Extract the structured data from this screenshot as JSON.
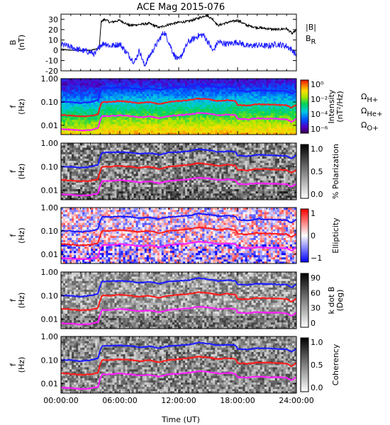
{
  "chart_data": {
    "type": "multi-panel spectrogram",
    "title": "ACE Mag 2015-076",
    "xlabel": "Time (UT)",
    "xticks": [
      "00:00:00",
      "06:00:00",
      "12:00:00",
      "18:00:00",
      "24:00:00"
    ],
    "xlim_hours": [
      0,
      24
    ],
    "panels": [
      {
        "id": "b-field",
        "type": "line",
        "ylabel": "B\n(nT)",
        "ylim": [
          -20,
          35
        ],
        "yticks": [
          "-20",
          "-10",
          "0",
          "10",
          "20",
          "30"
        ],
        "legend": [
          {
            "label": "|B|",
            "color": "#000000"
          },
          {
            "label": "B",
            "sub": "R",
            "color": "#1c1cff"
          }
        ],
        "series": [
          {
            "key": "B_mag",
            "color": "#000000",
            "x": [
              0,
              1,
              2,
              3,
              3.5,
              3.9,
              4.1,
              4.5,
              5,
              6,
              7,
              8,
              9,
              10,
              11,
              12,
              13,
              14,
              14.8,
              15.5,
              16,
              17,
              18,
              19,
              20,
              21,
              22,
              23,
              23.6,
              24
            ],
            "y": [
              1,
              0,
              0,
              0,
              1,
              2,
              28,
              30,
              27,
              29,
              24,
              25,
              26,
              22,
              25,
              27,
              28,
              31,
              34,
              30,
              24,
              27,
              29,
              24,
              22,
              21,
              20,
              21,
              16,
              20
            ]
          },
          {
            "key": "B_R",
            "color": "#1c1cff",
            "x": [
              0,
              1,
              2,
              3,
              3.5,
              4,
              4.5,
              5,
              6,
              6.5,
              7,
              7.5,
              8,
              8.5,
              9,
              10,
              10.5,
              11,
              11.5,
              12,
              13,
              14,
              14.5,
              15,
              15.5,
              16,
              17,
              18,
              19,
              20,
              21,
              22,
              23,
              23.6,
              24
            ],
            "y": [
              6,
              3,
              0,
              -2,
              -4,
              5,
              7,
              4,
              6,
              0,
              -6,
              -12,
              0,
              -15,
              -6,
              10,
              18,
              8,
              -4,
              -10,
              8,
              14,
              15,
              8,
              -1,
              8,
              6,
              8,
              4,
              5,
              4,
              6,
              4,
              0,
              -5
            ]
          }
        ]
      },
      {
        "id": "intensity",
        "type": "heatmap",
        "ylabel": "f\n(Hz)",
        "ylim_log": [
          0.004,
          1.0
        ],
        "yticks": [
          "1.00",
          "0.10",
          "0.01"
        ],
        "colorbar": {
          "label": "Intensity\n(nT²/Hz)",
          "ticks": [
            "10⁰",
            "10⁻²",
            "10⁻⁴",
            "10⁻⁶"
          ],
          "palette": "rainbow"
        },
        "side_legend": [
          {
            "label": "Ω",
            "sub": "H+",
            "color": "#1c1cff"
          },
          {
            "label": "Ω",
            "sub": "He+",
            "color": "#ff1c1c"
          },
          {
            "label": "Ω",
            "sub": "O+",
            "color": "#ff1cff"
          }
        ]
      },
      {
        "id": "polarization",
        "type": "heatmap",
        "ylabel": "f\n(Hz)",
        "ylim_log": [
          0.004,
          1.0
        ],
        "yticks": [
          "1.00",
          "0.10",
          "0.01"
        ],
        "colorbar": {
          "label": "% Polarization",
          "ticks": [
            "1.0",
            "0.5",
            "0.0"
          ],
          "palette": "gray"
        }
      },
      {
        "id": "ellipticity",
        "type": "heatmap",
        "ylabel": "f\n(Hz)",
        "ylim_log": [
          0.004,
          1.0
        ],
        "yticks": [
          "1.00",
          "0.10",
          "0.01"
        ],
        "colorbar": {
          "label": "Ellipticity",
          "ticks": [
            "1",
            "0",
            "−1"
          ],
          "palette": "bwr"
        }
      },
      {
        "id": "k-dot-b",
        "type": "heatmap",
        "ylabel": "f\n(Hz)",
        "ylim_log": [
          0.004,
          1.0
        ],
        "yticks": [
          "1.00",
          "0.10",
          "0.01"
        ],
        "colorbar": {
          "label": "k dot B\n(Deg)",
          "ticks": [
            "90",
            "60",
            "30",
            "0"
          ],
          "palette": "gray"
        }
      },
      {
        "id": "coherency",
        "type": "heatmap",
        "ylabel": "f\n(Hz)",
        "ylim_log": [
          0.004,
          1.0
        ],
        "yticks": [
          "1.00",
          "0.10",
          "0.01"
        ],
        "colorbar": {
          "label": "Coherency",
          "ticks": [
            "1.0",
            "0.5",
            "0.0"
          ],
          "palette": "gray"
        }
      }
    ],
    "gyrofrequency_lines": {
      "x_hours": [
        0,
        1,
        2,
        3,
        3.8,
        4.2,
        5,
        6,
        7,
        8,
        9,
        10,
        11,
        12,
        13,
        14,
        15,
        16,
        17,
        17.8,
        18,
        19,
        20,
        21,
        22,
        23,
        23.5,
        24
      ],
      "H+": [
        0.1,
        0.1,
        0.09,
        0.1,
        0.12,
        0.4,
        0.4,
        0.42,
        0.4,
        0.35,
        0.38,
        0.32,
        0.4,
        0.42,
        0.45,
        0.55,
        0.5,
        0.42,
        0.45,
        0.42,
        0.3,
        0.28,
        0.32,
        0.31,
        0.3,
        0.29,
        0.22,
        0.3
      ],
      "He+": [
        0.028,
        0.026,
        0.024,
        0.025,
        0.03,
        0.1,
        0.1,
        0.11,
        0.1,
        0.09,
        0.1,
        0.08,
        0.1,
        0.11,
        0.12,
        0.14,
        0.13,
        0.11,
        0.12,
        0.11,
        0.075,
        0.07,
        0.08,
        0.078,
        0.075,
        0.072,
        0.055,
        0.075
      ],
      "O+": [
        0.0068,
        0.0065,
        0.006,
        0.0063,
        0.0075,
        0.025,
        0.025,
        0.027,
        0.025,
        0.022,
        0.024,
        0.02,
        0.025,
        0.027,
        0.029,
        0.034,
        0.032,
        0.027,
        0.029,
        0.027,
        0.019,
        0.018,
        0.02,
        0.019,
        0.019,
        0.018,
        0.014,
        0.019
      ]
    }
  }
}
